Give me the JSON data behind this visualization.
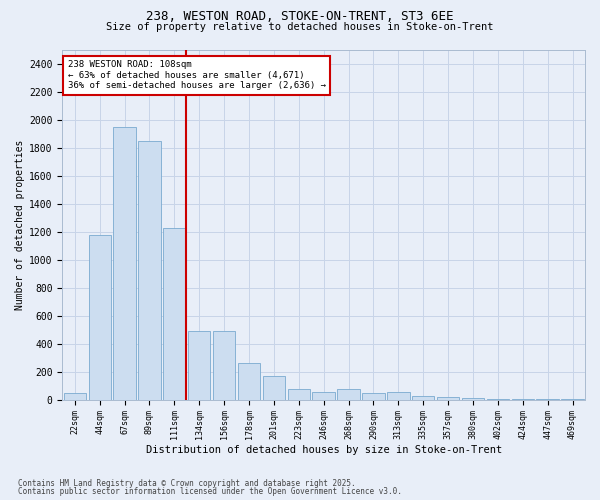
{
  "title1": "238, WESTON ROAD, STOKE-ON-TRENT, ST3 6EE",
  "title2": "Size of property relative to detached houses in Stoke-on-Trent",
  "xlabel": "Distribution of detached houses by size in Stoke-on-Trent",
  "ylabel": "Number of detached properties",
  "categories": [
    "22sqm",
    "44sqm",
    "67sqm",
    "89sqm",
    "111sqm",
    "134sqm",
    "156sqm",
    "178sqm",
    "201sqm",
    "223sqm",
    "246sqm",
    "268sqm",
    "290sqm",
    "313sqm",
    "335sqm",
    "357sqm",
    "380sqm",
    "402sqm",
    "424sqm",
    "447sqm",
    "469sqm"
  ],
  "values": [
    50,
    1175,
    1950,
    1850,
    1230,
    490,
    490,
    265,
    170,
    75,
    55,
    75,
    45,
    55,
    25,
    20,
    15,
    8,
    4,
    4,
    4
  ],
  "bar_color": "#ccddf0",
  "bar_edge_color": "#7aaad0",
  "vline_color": "#cc0000",
  "vline_x_index": 4,
  "property_label": "238 WESTON ROAD: 108sqm",
  "annotation_line1": "← 63% of detached houses are smaller (4,671)",
  "annotation_line2": "36% of semi-detached houses are larger (2,636) →",
  "annotation_box_color": "#ffffff",
  "annotation_box_edge": "#cc0000",
  "grid_color": "#c8d4e8",
  "background_color": "#e8eef8",
  "ylim": [
    0,
    2500
  ],
  "yticks": [
    0,
    200,
    400,
    600,
    800,
    1000,
    1200,
    1400,
    1600,
    1800,
    2000,
    2200,
    2400
  ],
  "footer1": "Contains HM Land Registry data © Crown copyright and database right 2025.",
  "footer2": "Contains public sector information licensed under the Open Government Licence v3.0."
}
